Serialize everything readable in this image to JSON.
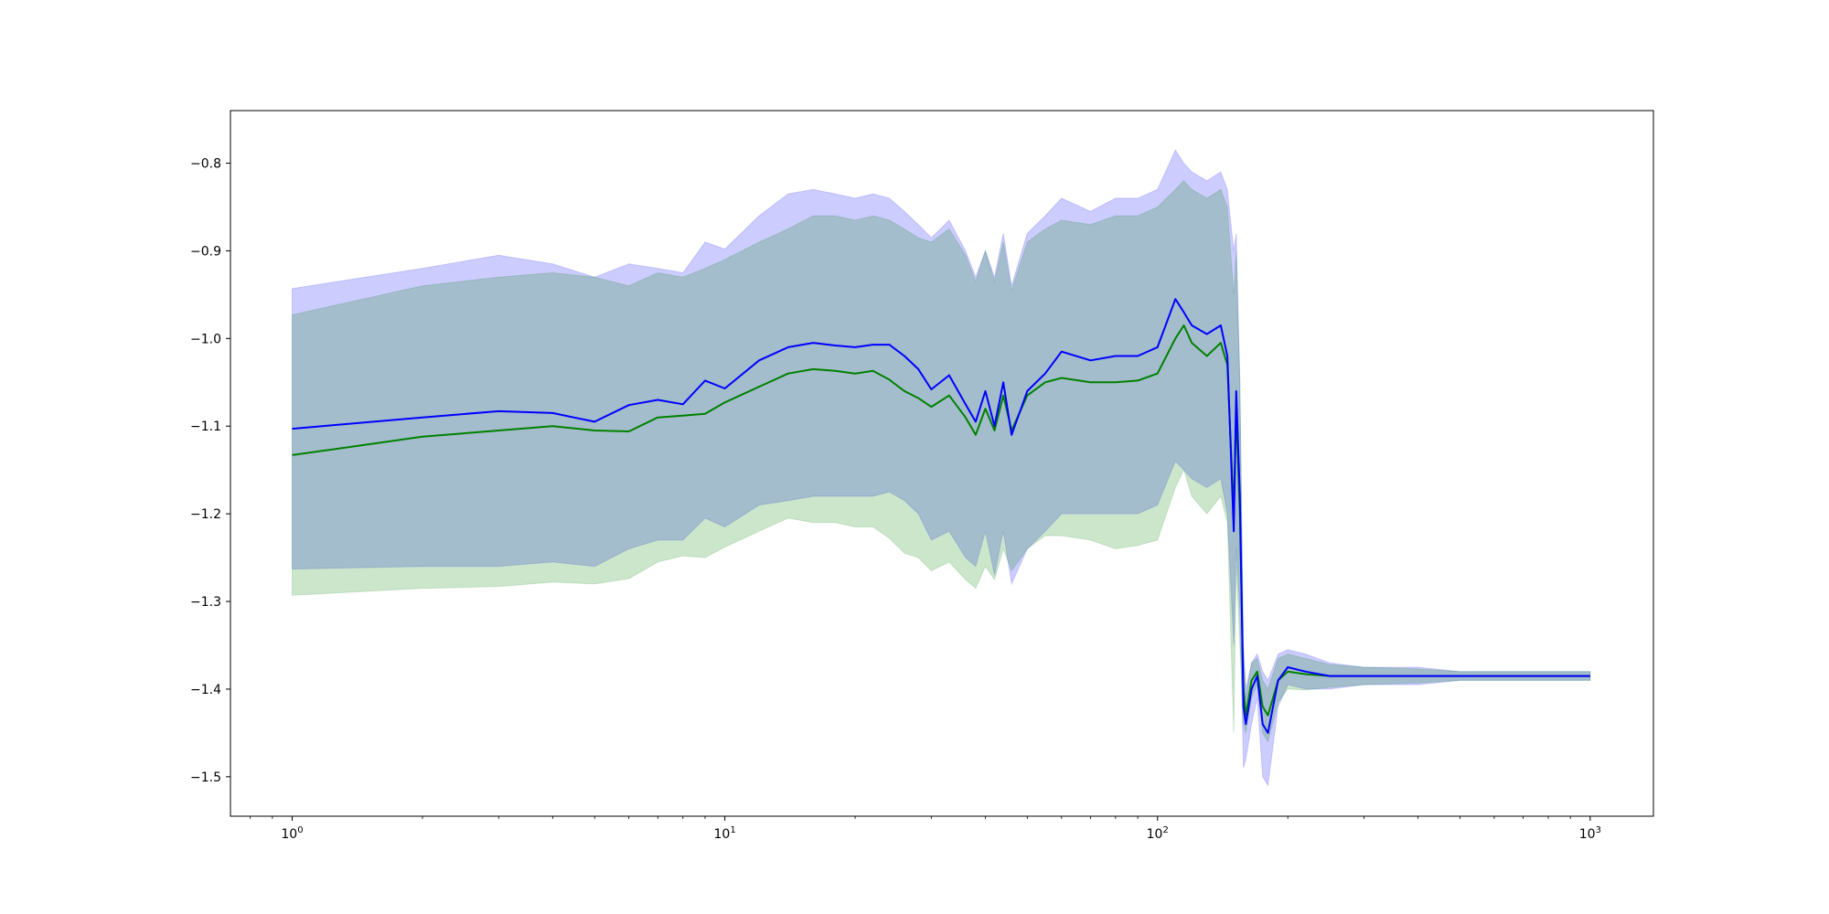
{
  "chart_data": {
    "type": "line",
    "title": "",
    "xlabel": "",
    "ylabel": "",
    "x_scale": "log",
    "xlim": [
      0.72,
      1400
    ],
    "ylim": [
      -1.545,
      -0.74
    ],
    "grid": false,
    "legend": "none",
    "x_ticks": [
      {
        "value": 1,
        "label_base": "10",
        "label_exp": "0"
      },
      {
        "value": 10,
        "label_base": "10",
        "label_exp": "1"
      },
      {
        "value": 100,
        "label_base": "10",
        "label_exp": "2"
      },
      {
        "value": 1000,
        "label_base": "10",
        "label_exp": "3"
      }
    ],
    "y_ticks": [
      {
        "value": -0.8,
        "label": "−0.8"
      },
      {
        "value": -0.9,
        "label": "−0.9"
      },
      {
        "value": -1.0,
        "label": "−1.0"
      },
      {
        "value": -1.1,
        "label": "−1.1"
      },
      {
        "value": -1.2,
        "label": "−1.2"
      },
      {
        "value": -1.3,
        "label": "−1.3"
      },
      {
        "value": -1.4,
        "label": "−1.4"
      },
      {
        "value": -1.5,
        "label": "−1.5"
      }
    ],
    "colors": {
      "blue_line": "#0000ff",
      "green_line": "#008000",
      "blue_band": "#0000ff",
      "green_band": "#008000"
    },
    "series": [
      {
        "color": "#0000ff",
        "x": [
          1,
          2,
          3,
          4,
          5,
          6,
          7,
          8,
          9,
          10,
          12,
          14,
          16,
          18,
          20,
          22,
          24,
          26,
          28,
          30,
          33,
          36,
          38,
          40,
          42,
          44,
          46,
          50,
          55,
          60,
          70,
          80,
          90,
          100,
          110,
          115,
          120,
          130,
          140,
          145,
          150,
          152,
          155,
          158,
          160,
          165,
          170,
          175,
          180,
          190,
          200,
          220,
          250,
          300,
          400,
          500,
          700,
          1000
        ],
        "y": [
          -1.103,
          -1.09,
          -1.083,
          -1.085,
          -1.095,
          -1.076,
          -1.07,
          -1.075,
          -1.048,
          -1.057,
          -1.025,
          -1.01,
          -1.005,
          -1.008,
          -1.01,
          -1.007,
          -1.007,
          -1.02,
          -1.035,
          -1.058,
          -1.042,
          -1.075,
          -1.095,
          -1.06,
          -1.1,
          -1.05,
          -1.11,
          -1.06,
          -1.04,
          -1.015,
          -1.025,
          -1.02,
          -1.02,
          -1.01,
          -0.955,
          -0.97,
          -0.985,
          -0.995,
          -0.985,
          -1.02,
          -1.22,
          -1.06,
          -1.18,
          -1.42,
          -1.44,
          -1.4,
          -1.385,
          -1.44,
          -1.45,
          -1.39,
          -1.375,
          -1.38,
          -1.385,
          -1.385,
          -1.385,
          -1.385,
          -1.385,
          -1.385
        ],
        "upper": [
          -0.943,
          -0.92,
          -0.905,
          -0.915,
          -0.93,
          -0.915,
          -0.92,
          -0.925,
          -0.89,
          -0.898,
          -0.86,
          -0.835,
          -0.83,
          -0.835,
          -0.84,
          -0.835,
          -0.84,
          -0.855,
          -0.87,
          -0.885,
          -0.865,
          -0.9,
          -0.93,
          -0.9,
          -0.93,
          -0.88,
          -0.94,
          -0.88,
          -0.86,
          -0.84,
          -0.855,
          -0.84,
          -0.84,
          -0.83,
          -0.785,
          -0.8,
          -0.81,
          -0.82,
          -0.81,
          -0.83,
          -0.9,
          -0.88,
          -1.05,
          -1.35,
          -1.4,
          -1.37,
          -1.36,
          -1.38,
          -1.39,
          -1.36,
          -1.355,
          -1.36,
          -1.37,
          -1.375,
          -1.375,
          -1.38,
          -1.38,
          -1.38
        ],
        "lower": [
          -1.263,
          -1.26,
          -1.26,
          -1.255,
          -1.26,
          -1.24,
          -1.23,
          -1.23,
          -1.205,
          -1.215,
          -1.19,
          -1.185,
          -1.18,
          -1.18,
          -1.18,
          -1.18,
          -1.175,
          -1.185,
          -1.2,
          -1.23,
          -1.22,
          -1.25,
          -1.26,
          -1.22,
          -1.27,
          -1.22,
          -1.28,
          -1.24,
          -1.22,
          -1.2,
          -1.2,
          -1.2,
          -1.2,
          -1.19,
          -1.14,
          -1.15,
          -1.16,
          -1.17,
          -1.16,
          -1.2,
          -1.35,
          -1.24,
          -1.31,
          -1.49,
          -1.48,
          -1.44,
          -1.41,
          -1.5,
          -1.51,
          -1.42,
          -1.395,
          -1.4,
          -1.4,
          -1.395,
          -1.395,
          -1.39,
          -1.39,
          -1.39
        ]
      },
      {
        "color": "#008000",
        "x": [
          1,
          2,
          3,
          4,
          5,
          6,
          7,
          8,
          9,
          10,
          12,
          14,
          16,
          18,
          20,
          22,
          24,
          26,
          28,
          30,
          33,
          36,
          38,
          40,
          42,
          44,
          46,
          50,
          55,
          60,
          70,
          80,
          90,
          100,
          110,
          115,
          120,
          130,
          140,
          145,
          150,
          152,
          155,
          158,
          160,
          165,
          170,
          175,
          180,
          190,
          200,
          220,
          250,
          300,
          400,
          500,
          700,
          1000
        ],
        "y": [
          -1.133,
          -1.112,
          -1.105,
          -1.1,
          -1.105,
          -1.106,
          -1.09,
          -1.088,
          -1.086,
          -1.073,
          -1.055,
          -1.04,
          -1.035,
          -1.037,
          -1.04,
          -1.037,
          -1.047,
          -1.06,
          -1.068,
          -1.078,
          -1.065,
          -1.09,
          -1.11,
          -1.08,
          -1.105,
          -1.065,
          -1.105,
          -1.065,
          -1.05,
          -1.045,
          -1.05,
          -1.05,
          -1.048,
          -1.04,
          -1.0,
          -0.985,
          -1.005,
          -1.02,
          -1.005,
          -1.03,
          -1.2,
          -1.08,
          -1.2,
          -1.4,
          -1.43,
          -1.39,
          -1.38,
          -1.42,
          -1.43,
          -1.39,
          -1.38,
          -1.383,
          -1.385,
          -1.385,
          -1.385,
          -1.385,
          -1.385,
          -1.385
        ],
        "upper": [
          -0.973,
          -0.94,
          -0.93,
          -0.925,
          -0.93,
          -0.94,
          -0.925,
          -0.93,
          -0.92,
          -0.91,
          -0.89,
          -0.875,
          -0.86,
          -0.86,
          -0.865,
          -0.86,
          -0.865,
          -0.875,
          -0.885,
          -0.89,
          -0.875,
          -0.905,
          -0.935,
          -0.9,
          -0.935,
          -0.89,
          -0.945,
          -0.89,
          -0.875,
          -0.865,
          -0.87,
          -0.86,
          -0.86,
          -0.85,
          -0.83,
          -0.82,
          -0.83,
          -0.84,
          -0.83,
          -0.85,
          -0.95,
          -0.9,
          -1.05,
          -1.36,
          -1.41,
          -1.37,
          -1.365,
          -1.39,
          -1.4,
          -1.365,
          -1.36,
          -1.365,
          -1.372,
          -1.375,
          -1.377,
          -1.38,
          -1.38,
          -1.38
        ],
        "lower": [
          -1.293,
          -1.285,
          -1.283,
          -1.278,
          -1.28,
          -1.274,
          -1.255,
          -1.248,
          -1.25,
          -1.238,
          -1.22,
          -1.205,
          -1.21,
          -1.21,
          -1.215,
          -1.215,
          -1.228,
          -1.245,
          -1.25,
          -1.265,
          -1.255,
          -1.275,
          -1.285,
          -1.26,
          -1.275,
          -1.24,
          -1.265,
          -1.24,
          -1.225,
          -1.225,
          -1.23,
          -1.24,
          -1.236,
          -1.23,
          -1.17,
          -1.15,
          -1.18,
          -1.2,
          -1.18,
          -1.21,
          -1.45,
          -1.26,
          -1.35,
          -1.44,
          -1.45,
          -1.41,
          -1.395,
          -1.45,
          -1.46,
          -1.415,
          -1.4,
          -1.401,
          -1.398,
          -1.395,
          -1.393,
          -1.39,
          -1.39,
          -1.39
        ]
      }
    ]
  }
}
